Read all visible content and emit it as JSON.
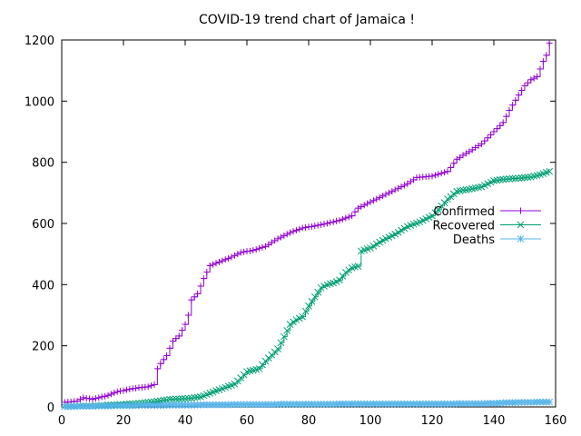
{
  "chart_data": {
    "type": "line",
    "title": "COVID-19 trend chart of Jamaica !",
    "xlabel": "",
    "ylabel": "",
    "xlim": [
      0,
      160
    ],
    "ylim": [
      0,
      1200
    ],
    "x_ticks": [
      "0",
      "20",
      "40",
      "60",
      "80",
      "100",
      "120",
      "140",
      "160"
    ],
    "y_ticks": [
      "0",
      "200",
      "400",
      "600",
      "800",
      "1000",
      "1200"
    ],
    "grid": false,
    "legend_position": "right",
    "series": [
      {
        "name": "Confirmed",
        "color": "#9400d3",
        "marker": "plus",
        "points": [
          [
            1,
            15
          ],
          [
            5,
            19
          ],
          [
            7,
            30
          ],
          [
            10,
            25
          ],
          [
            12,
            30
          ],
          [
            15,
            38
          ],
          [
            18,
            50
          ],
          [
            20,
            53
          ],
          [
            22,
            58
          ],
          [
            25,
            63
          ],
          [
            28,
            66
          ],
          [
            30,
            73
          ],
          [
            31,
            125
          ],
          [
            32,
            142
          ],
          [
            34,
            168
          ],
          [
            36,
            215
          ],
          [
            38,
            232
          ],
          [
            40,
            270
          ],
          [
            41,
            300
          ],
          [
            42,
            350
          ],
          [
            44,
            370
          ],
          [
            46,
            420
          ],
          [
            48,
            462
          ],
          [
            50,
            470
          ],
          [
            55,
            490
          ],
          [
            58,
            505
          ],
          [
            62,
            512
          ],
          [
            66,
            525
          ],
          [
            70,
            550
          ],
          [
            74,
            570
          ],
          [
            78,
            585
          ],
          [
            82,
            592
          ],
          [
            86,
            600
          ],
          [
            90,
            610
          ],
          [
            94,
            625
          ],
          [
            96,
            650
          ],
          [
            100,
            670
          ],
          [
            104,
            690
          ],
          [
            108,
            710
          ],
          [
            112,
            730
          ],
          [
            115,
            750
          ],
          [
            120,
            755
          ],
          [
            125,
            770
          ],
          [
            128,
            810
          ],
          [
            132,
            835
          ],
          [
            136,
            860
          ],
          [
            140,
            900
          ],
          [
            143,
            930
          ],
          [
            145,
            970
          ],
          [
            148,
            1020
          ],
          [
            150,
            1050
          ],
          [
            152,
            1070
          ],
          [
            154,
            1080
          ],
          [
            156,
            1130
          ],
          [
            157,
            1150
          ],
          [
            158,
            1190
          ]
        ]
      },
      {
        "name": "Recovered",
        "color": "#009e73",
        "marker": "cross",
        "points": [
          [
            1,
            2
          ],
          [
            10,
            3
          ],
          [
            20,
            8
          ],
          [
            25,
            12
          ],
          [
            30,
            17
          ],
          [
            35,
            25
          ],
          [
            40,
            27
          ],
          [
            45,
            33
          ],
          [
            48,
            45
          ],
          [
            52,
            60
          ],
          [
            56,
            75
          ],
          [
            58,
            95
          ],
          [
            60,
            115
          ],
          [
            64,
            125
          ],
          [
            66,
            150
          ],
          [
            70,
            190
          ],
          [
            72,
            230
          ],
          [
            74,
            270
          ],
          [
            76,
            285
          ],
          [
            78,
            295
          ],
          [
            80,
            330
          ],
          [
            82,
            360
          ],
          [
            84,
            390
          ],
          [
            86,
            400
          ],
          [
            88,
            405
          ],
          [
            90,
            415
          ],
          [
            92,
            440
          ],
          [
            94,
            455
          ],
          [
            96,
            460
          ],
          [
            97,
            510
          ],
          [
            100,
            520
          ],
          [
            104,
            545
          ],
          [
            108,
            565
          ],
          [
            112,
            590
          ],
          [
            116,
            605
          ],
          [
            118,
            615
          ],
          [
            120,
            625
          ],
          [
            122,
            645
          ],
          [
            125,
            680
          ],
          [
            128,
            705
          ],
          [
            132,
            712
          ],
          [
            136,
            720
          ],
          [
            140,
            740
          ],
          [
            144,
            745
          ],
          [
            148,
            748
          ],
          [
            152,
            752
          ],
          [
            155,
            760
          ],
          [
            158,
            770
          ]
        ]
      },
      {
        "name": "Deaths",
        "color": "#56b4e9",
        "marker": "star",
        "points": [
          [
            1,
            1
          ],
          [
            20,
            4
          ],
          [
            40,
            6
          ],
          [
            60,
            8
          ],
          [
            80,
            9
          ],
          [
            100,
            10
          ],
          [
            120,
            10
          ],
          [
            135,
            11
          ],
          [
            140,
            12
          ],
          [
            145,
            14
          ],
          [
            150,
            15
          ],
          [
            158,
            16
          ]
        ]
      }
    ]
  }
}
